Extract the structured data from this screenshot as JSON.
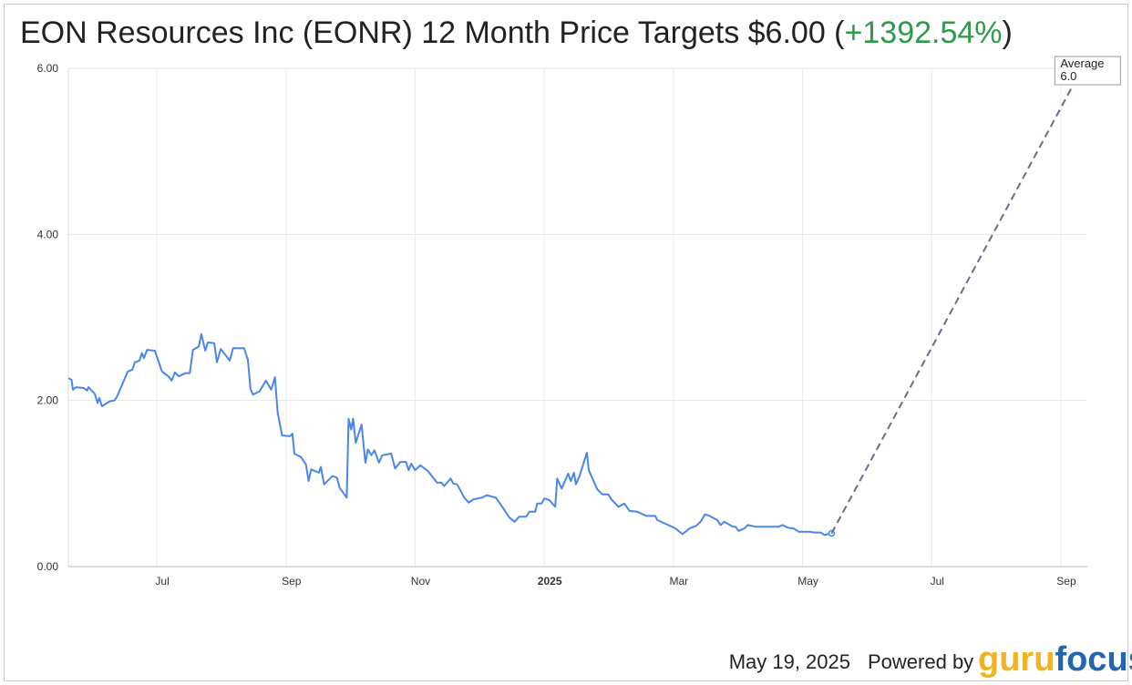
{
  "title": "EON Resources Inc (EONR) 12 Month Price Targets $6.00 (",
  "title_change": "+1392.54%",
  "title_end": ")",
  "footer": {
    "date": "May 19, 2025",
    "powered": "Powered by",
    "logo": [
      "guru",
      "focus"
    ]
  },
  "chart_data": {
    "type": "line",
    "xlim": [
      4.63,
      20.41
    ],
    "xticks": [
      {
        "value": 6,
        "label": "Jul"
      },
      {
        "value": 8,
        "label": "Sep"
      },
      {
        "value": 10,
        "label": "Nov"
      },
      {
        "value": 12,
        "label": "2025",
        "bold": true
      },
      {
        "value": 14,
        "label": "Mar"
      },
      {
        "value": 16,
        "label": "May"
      },
      {
        "value": 18,
        "label": "Jul"
      },
      {
        "value": 20,
        "label": "Sep"
      }
    ],
    "ylim": [
      0,
      6
    ],
    "yticks": [
      {
        "value": 0,
        "label": "0.00"
      },
      {
        "value": 2,
        "label": "2.00"
      },
      {
        "value": 4,
        "label": "4.00"
      },
      {
        "value": 6,
        "label": "6.00"
      }
    ],
    "grid": true,
    "annotation": {
      "label": "Average",
      "value_label": "6.0"
    },
    "series": [
      {
        "color": "#4a86e8",
        "dashed": false,
        "end_marker": true,
        "x": [
          4.63,
          4.68,
          4.7,
          4.75,
          4.87,
          4.92,
          4.94,
          5.04,
          5.08,
          5.11,
          5.15,
          5.27,
          5.34,
          5.38,
          5.55,
          5.62,
          5.66,
          5.73,
          5.77,
          5.8,
          5.85,
          5.97,
          6.03,
          6.08,
          6.18,
          6.23,
          6.28,
          6.34,
          6.44,
          6.51,
          6.56,
          6.65,
          6.69,
          6.75,
          6.79,
          6.89,
          6.93,
          6.99,
          7.07,
          7.13,
          7.18,
          7.35,
          7.41,
          7.45,
          7.49,
          7.59,
          7.69,
          7.77,
          7.83,
          7.87,
          7.94,
          8.06,
          8.1,
          8.13,
          8.23,
          8.31,
          8.35,
          8.39,
          8.51,
          8.54,
          8.59,
          8.72,
          8.79,
          8.83,
          8.94,
          8.97,
          9.01,
          9.04,
          9.08,
          9.17,
          9.23,
          9.27,
          9.32,
          9.37,
          9.44,
          9.49,
          9.63,
          9.69,
          9.77,
          9.86,
          9.9,
          9.94,
          10.0,
          10.08,
          10.2,
          10.34,
          10.41,
          10.45,
          10.55,
          10.59,
          10.65,
          10.76,
          10.83,
          10.9,
          11.04,
          11.11,
          11.25,
          11.35,
          11.46,
          11.54,
          11.61,
          11.72,
          11.77,
          11.86,
          11.89,
          11.96,
          12.0,
          12.08,
          12.17,
          12.2,
          12.27,
          12.37,
          12.41,
          12.46,
          12.49,
          12.55,
          12.66,
          12.69,
          12.82,
          12.9,
          12.99,
          13.04,
          13.15,
          13.24,
          13.32,
          13.44,
          13.58,
          13.72,
          13.75,
          13.92,
          14.03,
          14.14,
          14.25,
          14.35,
          14.42,
          14.49,
          14.56,
          14.68,
          14.73,
          14.79,
          14.92,
          14.96,
          15.01,
          15.1,
          15.15,
          15.27,
          15.35,
          15.41,
          15.63,
          15.69,
          15.77,
          15.86,
          15.94,
          16.11,
          16.18,
          16.28,
          16.34,
          16.39,
          16.45
        ],
        "values": [
          2.27,
          2.25,
          2.13,
          2.16,
          2.15,
          2.12,
          2.16,
          2.08,
          1.97,
          2.03,
          1.93,
          1.99,
          2.0,
          2.04,
          2.35,
          2.37,
          2.46,
          2.48,
          2.57,
          2.51,
          2.61,
          2.6,
          2.46,
          2.35,
          2.29,
          2.24,
          2.34,
          2.29,
          2.33,
          2.33,
          2.61,
          2.65,
          2.8,
          2.6,
          2.7,
          2.69,
          2.46,
          2.62,
          2.54,
          2.48,
          2.63,
          2.63,
          2.49,
          2.14,
          2.07,
          2.11,
          2.24,
          2.13,
          2.28,
          1.86,
          1.58,
          1.57,
          1.6,
          1.36,
          1.32,
          1.23,
          1.03,
          1.17,
          1.13,
          1.2,
          0.99,
          1.09,
          1.07,
          0.95,
          0.83,
          1.78,
          1.65,
          1.78,
          1.49,
          1.71,
          1.25,
          1.41,
          1.34,
          1.4,
          1.25,
          1.34,
          1.36,
          1.18,
          1.26,
          1.26,
          1.16,
          1.24,
          1.16,
          1.22,
          1.15,
          1.01,
          1.01,
          0.97,
          1.06,
          1.0,
          0.99,
          0.83,
          0.77,
          0.81,
          0.83,
          0.86,
          0.83,
          0.72,
          0.59,
          0.54,
          0.6,
          0.6,
          0.66,
          0.66,
          0.76,
          0.76,
          0.82,
          0.8,
          0.72,
          1.06,
          0.94,
          1.12,
          1.03,
          1.13,
          0.99,
          1.1,
          1.37,
          1.16,
          0.93,
          0.87,
          0.87,
          0.81,
          0.72,
          0.76,
          0.67,
          0.66,
          0.61,
          0.61,
          0.56,
          0.5,
          0.46,
          0.39,
          0.46,
          0.49,
          0.54,
          0.63,
          0.61,
          0.56,
          0.5,
          0.54,
          0.48,
          0.48,
          0.43,
          0.46,
          0.5,
          0.48,
          0.48,
          0.48,
          0.48,
          0.5,
          0.47,
          0.46,
          0.42,
          0.42,
          0.41,
          0.41,
          0.38,
          0.39,
          0.4
        ]
      },
      {
        "color": "#666f88",
        "dashed": true,
        "end_marker": false,
        "x": [
          16.45,
          20.33
        ],
        "values": [
          0.4,
          6.0
        ]
      }
    ]
  }
}
